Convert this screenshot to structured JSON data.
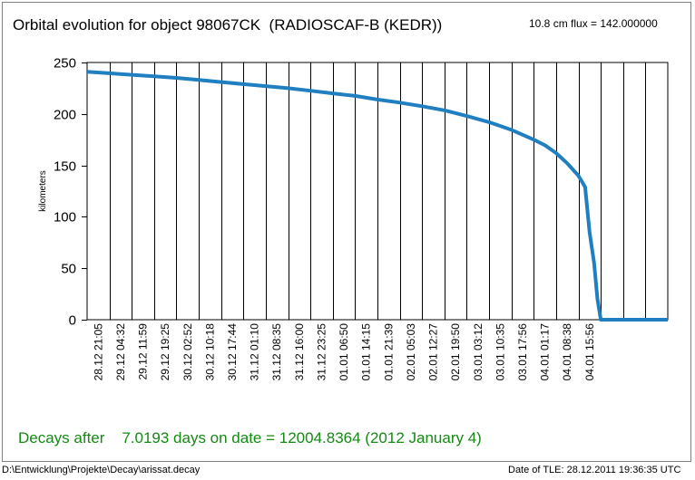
{
  "title": "Orbital evolution for object 98067CK  (RADIOSCAF-B (KEDR))",
  "flux": "10.8 cm flux = 142.000000",
  "result": "Decays after    7.0193 days on date = 12004.8364 (2012 January 4)",
  "footer": {
    "path": "D:\\Entwicklung\\Projekte\\Decay\\arissat.decay",
    "tle_date": "Date of TLE: 28.12.2011  19:36:35 UTC"
  },
  "colors": {
    "line": "#1f7fc0",
    "result_text": "#138a13",
    "grid": "#000000"
  },
  "chart_data": {
    "type": "line",
    "ylabel": "kilometers",
    "ylim": [
      0,
      250
    ],
    "yticks": [
      0,
      50,
      100,
      150,
      200,
      250
    ],
    "categories": [
      "28.12 21:05",
      "29.12 04:32",
      "29.12 11:59",
      "29.12 19:25",
      "30.12 02:52",
      "30.12 10:18",
      "30.12 17:44",
      "31.12 01:10",
      "31.12 08:35",
      "31.12 16:00",
      "31.12 23:25",
      "01.01 06:50",
      "01.01 14:15",
      "01.01 21:39",
      "02.01 05:03",
      "02.01 12:27",
      "02.01 19:50",
      "03.01 03:12",
      "03.01 10:35",
      "03.01 17:56",
      "04.01 01:17",
      "04.01 08:38",
      "04.01 15:56",
      "",
      "",
      ""
    ],
    "grid": true,
    "series": [
      {
        "x": [
          0,
          1,
          2,
          3,
          4,
          5,
          6,
          7,
          8,
          9,
          10,
          11,
          12,
          13,
          14,
          15,
          16,
          17,
          18,
          19,
          20,
          20.5,
          21,
          21.5,
          22,
          22.3,
          22.5,
          22.7,
          22.85,
          23,
          23.15,
          23.3,
          24,
          25,
          26
        ],
        "y": [
          241,
          239.5,
          238,
          236.5,
          235,
          233,
          231,
          229,
          227,
          225,
          222.5,
          220,
          217.5,
          214,
          211,
          207.5,
          203.5,
          198,
          192,
          184.5,
          175,
          169.5,
          162,
          152,
          140,
          129,
          85,
          55,
          20,
          0,
          0,
          0,
          0,
          0,
          0
        ]
      }
    ]
  }
}
